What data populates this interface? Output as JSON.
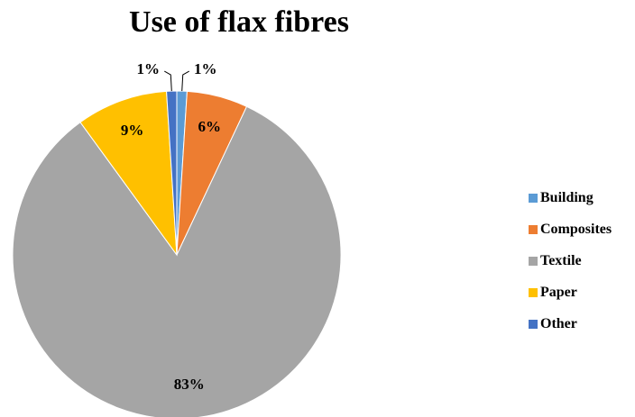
{
  "chart_data": {
    "type": "pie",
    "title": "Use of flax fibres",
    "categories": [
      "Building",
      "Composites",
      "Textile",
      "Paper",
      "Other"
    ],
    "values": [
      1,
      6,
      83,
      9,
      1
    ],
    "data_labels": [
      "1%",
      "6%",
      "83%",
      "9%",
      "1%"
    ],
    "colors": [
      "#5B9BD5",
      "#ED7D31",
      "#A5A5A5",
      "#FFC000",
      "#4472C4"
    ],
    "legend_position": "right"
  }
}
